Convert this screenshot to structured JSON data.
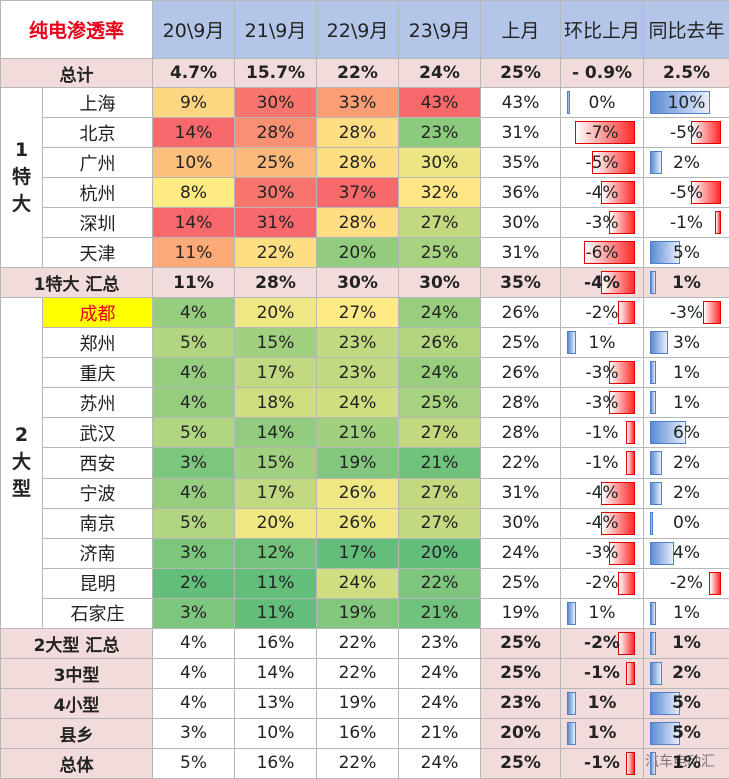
{
  "chart_data": {
    "type": "table",
    "title": "纯电渗透率",
    "columns": [
      "20\\9月",
      "21\\9月",
      "22\\9月",
      "23\\9月",
      "上月",
      "环比上月",
      "同比去年"
    ],
    "groups": [
      {
        "label": "1 特大",
        "rows": [
          {
            "name": "上海",
            "values": [
              "9%",
              "30%",
              "33%",
              "43%",
              "43%",
              "0%",
              "10%"
            ],
            "mom": 0,
            "yoy": 10
          },
          {
            "name": "北京",
            "values": [
              "14%",
              "28%",
              "28%",
              "23%",
              "31%",
              "-7%",
              "-5%"
            ],
            "mom": -7,
            "yoy": -5
          },
          {
            "name": "广州",
            "values": [
              "10%",
              "25%",
              "28%",
              "30%",
              "35%",
              "-5%",
              "2%"
            ],
            "mom": -5,
            "yoy": 2
          },
          {
            "name": "杭州",
            "values": [
              "8%",
              "30%",
              "37%",
              "32%",
              "36%",
              "-4%",
              "-5%"
            ],
            "mom": -4,
            "yoy": -5
          },
          {
            "name": "深圳",
            "values": [
              "14%",
              "31%",
              "28%",
              "27%",
              "30%",
              "-3%",
              "-1%"
            ],
            "mom": -3,
            "yoy": -1
          },
          {
            "name": "天津",
            "values": [
              "11%",
              "22%",
              "20%",
              "25%",
              "31%",
              "-6%",
              "5%"
            ],
            "mom": -6,
            "yoy": 5
          }
        ]
      },
      {
        "label": "2 大型",
        "rows": [
          {
            "name": "成都",
            "highlight": true,
            "values": [
              "4%",
              "20%",
              "27%",
              "24%",
              "26%",
              "-2%",
              "-3%"
            ],
            "mom": -2,
            "yoy": -3
          },
          {
            "name": "郑州",
            "values": [
              "5%",
              "15%",
              "23%",
              "26%",
              "25%",
              "1%",
              "3%"
            ],
            "mom": 1,
            "yoy": 3
          },
          {
            "name": "重庆",
            "values": [
              "4%",
              "17%",
              "23%",
              "24%",
              "26%",
              "-3%",
              "1%"
            ],
            "mom": -3,
            "yoy": 1
          },
          {
            "name": "苏州",
            "values": [
              "4%",
              "18%",
              "24%",
              "25%",
              "28%",
              "-3%",
              "1%"
            ],
            "mom": -3,
            "yoy": 1
          },
          {
            "name": "武汉",
            "values": [
              "5%",
              "14%",
              "21%",
              "27%",
              "28%",
              "-1%",
              "6%"
            ],
            "mom": -1,
            "yoy": 6
          },
          {
            "name": "西安",
            "values": [
              "3%",
              "15%",
              "19%",
              "21%",
              "22%",
              "-1%",
              "2%"
            ],
            "mom": -1,
            "yoy": 2
          },
          {
            "name": "宁波",
            "values": [
              "4%",
              "17%",
              "26%",
              "27%",
              "31%",
              "-4%",
              "2%"
            ],
            "mom": -4,
            "yoy": 2
          },
          {
            "name": "南京",
            "values": [
              "5%",
              "20%",
              "26%",
              "27%",
              "30%",
              "-4%",
              "0%"
            ],
            "mom": -4,
            "yoy": 0
          },
          {
            "name": "济南",
            "values": [
              "3%",
              "12%",
              "17%",
              "20%",
              "24%",
              "-3%",
              "4%"
            ],
            "mom": -3,
            "yoy": 4
          },
          {
            "name": "昆明",
            "values": [
              "2%",
              "11%",
              "24%",
              "22%",
              "25%",
              "-2%",
              "-2%"
            ],
            "mom": -2,
            "yoy": -2
          },
          {
            "name": "石家庄",
            "values": [
              "3%",
              "11%",
              "19%",
              "21%",
              "19%",
              "1%",
              "1%"
            ],
            "mom": 1,
            "yoy": 1
          }
        ]
      }
    ],
    "summaries": {
      "total_top": {
        "name": "总计",
        "values": [
          "4.7%",
          "15.7%",
          "22%",
          "24%",
          "25%",
          "- 0.9%",
          "2.5%"
        ]
      },
      "g1": {
        "name": "1特大 汇总",
        "values": [
          "11%",
          "28%",
          "30%",
          "30%",
          "35%",
          "-4%",
          "1%"
        ],
        "mom": -4,
        "yoy": 1
      },
      "g2": {
        "name": "2大型 汇总",
        "values": [
          "4%",
          "16%",
          "22%",
          "23%",
          "25%",
          "-2%",
          "1%"
        ],
        "mom": -2,
        "yoy": 1
      },
      "mid": {
        "name": "3中型",
        "values": [
          "4%",
          "14%",
          "22%",
          "24%",
          "25%",
          "-1%",
          "2%"
        ],
        "mom": -1,
        "yoy": 2
      },
      "small": {
        "name": "4小型",
        "values": [
          "4%",
          "13%",
          "19%",
          "24%",
          "23%",
          "1%",
          "5%"
        ],
        "mom": 1,
        "yoy": 5
      },
      "county": {
        "name": "县乡",
        "values": [
          "3%",
          "10%",
          "16%",
          "21%",
          "20%",
          "1%",
          "5%"
        ],
        "mom": 1,
        "yoy": 5
      },
      "overall": {
        "name": "总体",
        "values": [
          "5%",
          "16%",
          "22%",
          "24%",
          "25%",
          "-1%",
          "1%"
        ],
        "mom": -1,
        "yoy": 1
      }
    },
    "colors": {
      "header_bg": "#b4c6e7",
      "summary_bg": "#f2dcdb",
      "highlight_bg": "#ffff00",
      "title_red": "#e8001a",
      "scale_low": "#63be7b",
      "scale_mid": "#ffeb84",
      "scale_high": "#f8696b",
      "bar_negative": "#ff2a2a",
      "bar_positive": "#5b8bd6"
    },
    "watermark": "汽车电动汇"
  }
}
